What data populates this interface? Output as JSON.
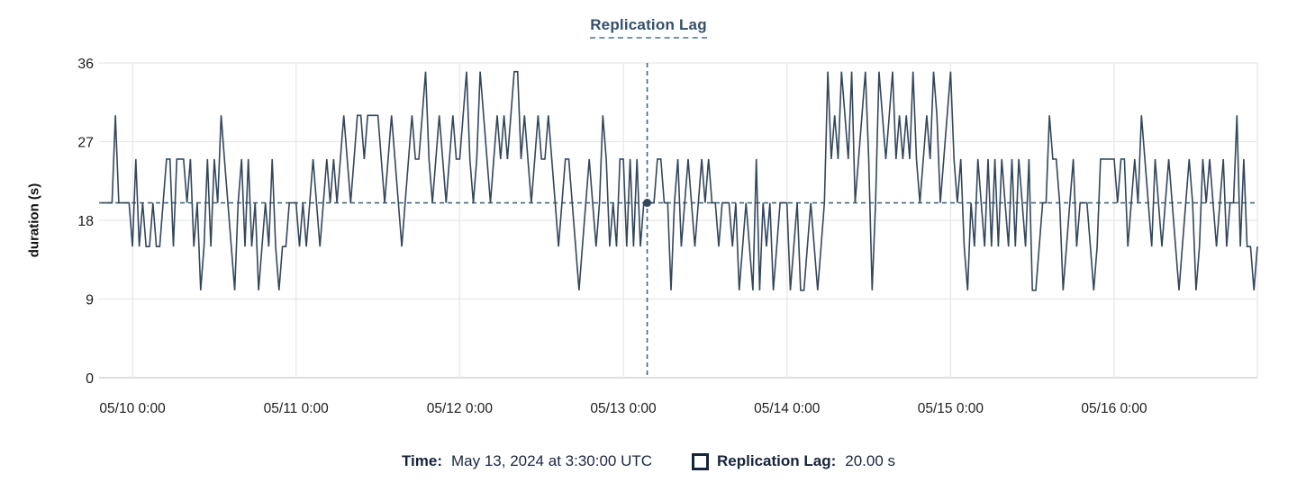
{
  "title": "Replication Lag",
  "colors": {
    "line": "#33475c",
    "crosshair": "#3e697d",
    "grid": "#e8e8e8",
    "axis_line": "#dedede",
    "title": "#334f6d",
    "title_underline": "#7b93b2",
    "tick": "#1e1e1e",
    "legend_text": "#16233c"
  },
  "y_axis": {
    "label": "duration (s)",
    "ticks": [
      0,
      9,
      18,
      27,
      36
    ]
  },
  "x_axis": {
    "tick_labels": [
      "05/10 0:00",
      "05/11 0:00",
      "05/12 0:00",
      "05/13 0:00",
      "05/14 0:00",
      "05/15 0:00",
      "05/16 0:00"
    ]
  },
  "tooltip": {
    "time_label": "Time:",
    "time_value": "May 13, 2024 at 3:30:00 UTC",
    "series_label": "Replication Lag:",
    "series_value": "20.00 s"
  },
  "chart_data": {
    "type": "line",
    "title": "Replication Lag",
    "xlabel": "",
    "ylabel": "duration (s)",
    "ylim": [
      0,
      36
    ],
    "y_ticks": [
      0,
      9,
      18,
      27,
      36
    ],
    "grid": true,
    "x_start": "2024-05-09T19:30:00Z",
    "x_interval_minutes": 30,
    "x_tick_labels": [
      "05/10 0:00",
      "05/11 0:00",
      "05/12 0:00",
      "05/13 0:00",
      "05/14 0:00",
      "05/15 0:00",
      "05/16 0:00"
    ],
    "x_tick_indices": [
      9,
      57,
      105,
      153,
      201,
      249,
      297
    ],
    "series_name": "Replication Lag",
    "unit": "s",
    "crosshair": {
      "index": 160,
      "time": "May 13, 2024 at 3:30:00 UTC",
      "value": 20.0
    },
    "reference_y": 20,
    "values": [
      20,
      20,
      20,
      20,
      30,
      20,
      20,
      20,
      20,
      15,
      25,
      15,
      20,
      15,
      15,
      20,
      15,
      15,
      20,
      25,
      25,
      15,
      25,
      25,
      25,
      20,
      25,
      15,
      20,
      10,
      15,
      25,
      15,
      25,
      20,
      30,
      25,
      20,
      15,
      10,
      20,
      25,
      15,
      25,
      15,
      20,
      10,
      15,
      20,
      15,
      25,
      15,
      10,
      15,
      15,
      20,
      20,
      20,
      15,
      20,
      15,
      20,
      25,
      20,
      15,
      20,
      25,
      20,
      25,
      20,
      25,
      30,
      25,
      20,
      25,
      30,
      30,
      25,
      30,
      30,
      30,
      30,
      25,
      20,
      25,
      30,
      25,
      20,
      15,
      20,
      25,
      30,
      25,
      25,
      30,
      35,
      25,
      20,
      25,
      30,
      25,
      20,
      25,
      30,
      25,
      25,
      30,
      35,
      25,
      20,
      25,
      35,
      30,
      25,
      20,
      25,
      30,
      25,
      30,
      25,
      30,
      35,
      35,
      25,
      30,
      25,
      20,
      25,
      30,
      25,
      25,
      30,
      25,
      20,
      15,
      20,
      25,
      25,
      20,
      15,
      10,
      15,
      20,
      25,
      20,
      15,
      20,
      30,
      25,
      15,
      20,
      15,
      25,
      25,
      15,
      25,
      15,
      25,
      15,
      20,
      20,
      20,
      20,
      25,
      25,
      20,
      20,
      10,
      20,
      25,
      15,
      20,
      25,
      20,
      15,
      20,
      25,
      20,
      25,
      20,
      20,
      15,
      20,
      20,
      20,
      15,
      20,
      10,
      15,
      20,
      15,
      10,
      25,
      10,
      20,
      15,
      20,
      10,
      15,
      20,
      20,
      20,
      10,
      15,
      20,
      10,
      10,
      15,
      20,
      15,
      10,
      15,
      20,
      35,
      25,
      30,
      25,
      35,
      30,
      25,
      35,
      20,
      25,
      30,
      35,
      25,
      10,
      20,
      35,
      30,
      25,
      30,
      35,
      25,
      30,
      25,
      30,
      25,
      35,
      25,
      20,
      25,
      30,
      25,
      35,
      30,
      20,
      25,
      30,
      35,
      25,
      20,
      25,
      15,
      10,
      20,
      15,
      25,
      20,
      15,
      25,
      15,
      25,
      15,
      25,
      20,
      15,
      25,
      15,
      25,
      20,
      15,
      25,
      10,
      10,
      15,
      20,
      20,
      30,
      25,
      25,
      20,
      10,
      15,
      20,
      25,
      15,
      20,
      20,
      20,
      15,
      10,
      15,
      25,
      25,
      25,
      25,
      25,
      20,
      25,
      25,
      15,
      20,
      25,
      20,
      30,
      25,
      20,
      15,
      25,
      20,
      15,
      20,
      25,
      20,
      15,
      10,
      15,
      20,
      25,
      20,
      10,
      15,
      25,
      20,
      25,
      20,
      15,
      20,
      25,
      15,
      20,
      20,
      30,
      15,
      25,
      15,
      15,
      10,
      15
    ]
  }
}
